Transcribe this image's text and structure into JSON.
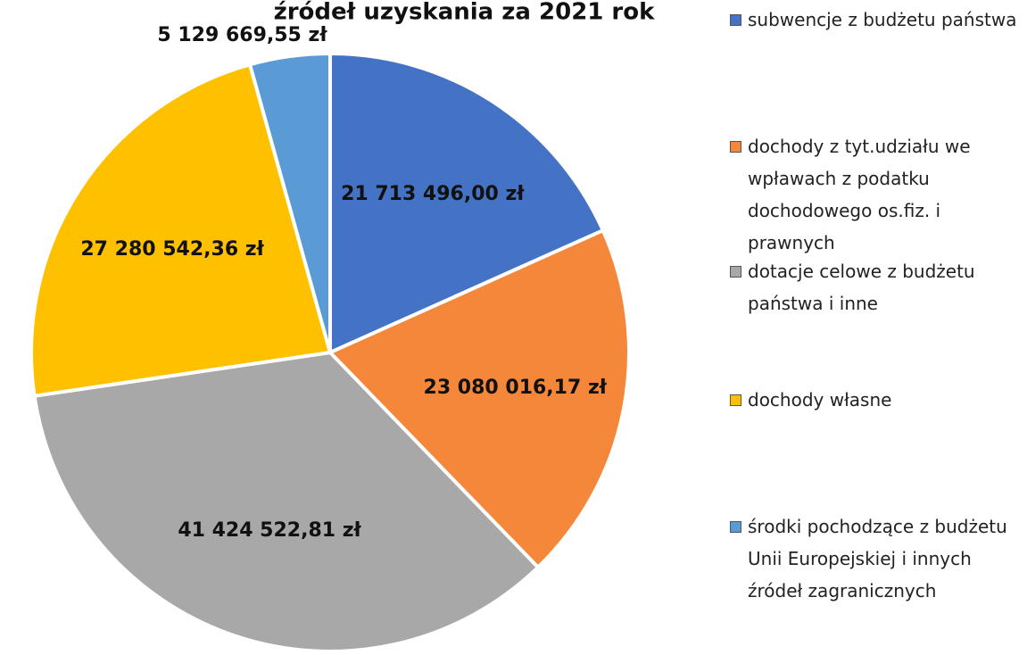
{
  "chart_data": {
    "type": "pie",
    "title": "źródeł uzyskania za 2021 rok",
    "categories": [
      "subwencje z budżetu państwa",
      "dochody z tyt.udziału we wpławach z podatku dochodowego os.fiz. i prawnych",
      "dotacje celowe z budżetu państwa i inne",
      "dochody własne",
      "środki pochodzące z budżetu Unii Europejskiej i innych źródeł zagranicznych"
    ],
    "values": [
      21713496.0,
      23080016.17,
      41424522.81,
      27280542.36,
      5129669.55
    ],
    "value_labels": [
      "21 713 496,00 zł",
      "23 080 016,17 zł",
      "41 424 522,81 zł",
      "27 280 542,36 zł",
      "5 129 669,55 zł"
    ],
    "colors": [
      "#4472c4",
      "#f4873a",
      "#a8a8a8",
      "#ffc000",
      "#5b9bd5"
    ],
    "legend": "right"
  }
}
